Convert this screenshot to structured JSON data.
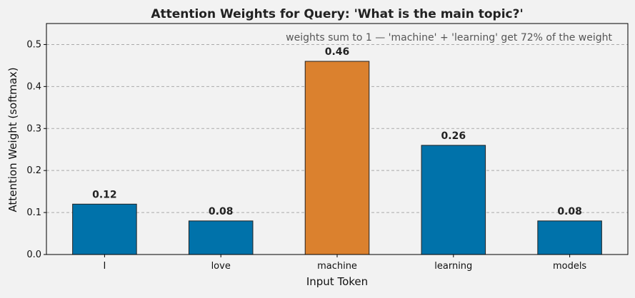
{
  "chart_data": {
    "type": "bar",
    "title": "Attention Weights for Query: 'What is the main topic?'",
    "xlabel": "Input Token",
    "ylabel": "Attention Weight (softmax)",
    "categories": [
      "I",
      "love",
      "machine",
      "learning",
      "models"
    ],
    "values": [
      0.12,
      0.08,
      0.46,
      0.26,
      0.08
    ],
    "value_labels": [
      "0.12",
      "0.08",
      "0.46",
      "0.26",
      "0.08"
    ],
    "ylim": [
      0,
      0.55
    ],
    "yticks": [
      0.0,
      0.1,
      0.2,
      0.3,
      0.4,
      0.5
    ],
    "ytick_labels": [
      "0.0",
      "0.1",
      "0.2",
      "0.3",
      "0.4",
      "0.5"
    ],
    "grid": true,
    "annotation": "weights sum to 1 — 'machine' + 'learning' get 72% of the weight",
    "colors": {
      "default_bar": "#0072aa",
      "highlight_bar": "#db812e",
      "background": "#f2f2f2"
    },
    "highlight_index": 2
  }
}
